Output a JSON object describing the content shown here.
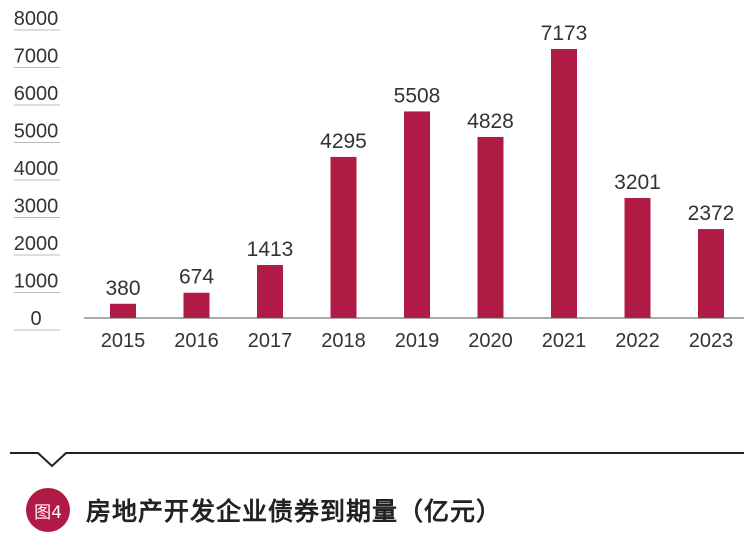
{
  "chart_data": {
    "type": "bar",
    "categories": [
      "2015",
      "2016",
      "2017",
      "2018",
      "2019",
      "2020",
      "2021",
      "2022",
      "2023"
    ],
    "values": [
      380,
      674,
      1413,
      4295,
      5508,
      4828,
      7173,
      3201,
      2372
    ],
    "data_labels": [
      "380",
      "674",
      "1413",
      "4295",
      "5508",
      "4828",
      "7173",
      "3201",
      "2372"
    ],
    "y_ticks": [
      "8000",
      "7000",
      "6000",
      "5000",
      "4000",
      "3000",
      "2000",
      "1000",
      "0"
    ],
    "y_tick_values": [
      8000,
      7000,
      6000,
      5000,
      4000,
      3000,
      2000,
      1000,
      0
    ],
    "ylim": [
      0,
      8000
    ],
    "grid": false,
    "legend": "none",
    "bar_color": "#b01b45"
  },
  "caption": {
    "badge": "图4",
    "title": "房地产开发企业债券到期量（亿元）"
  }
}
